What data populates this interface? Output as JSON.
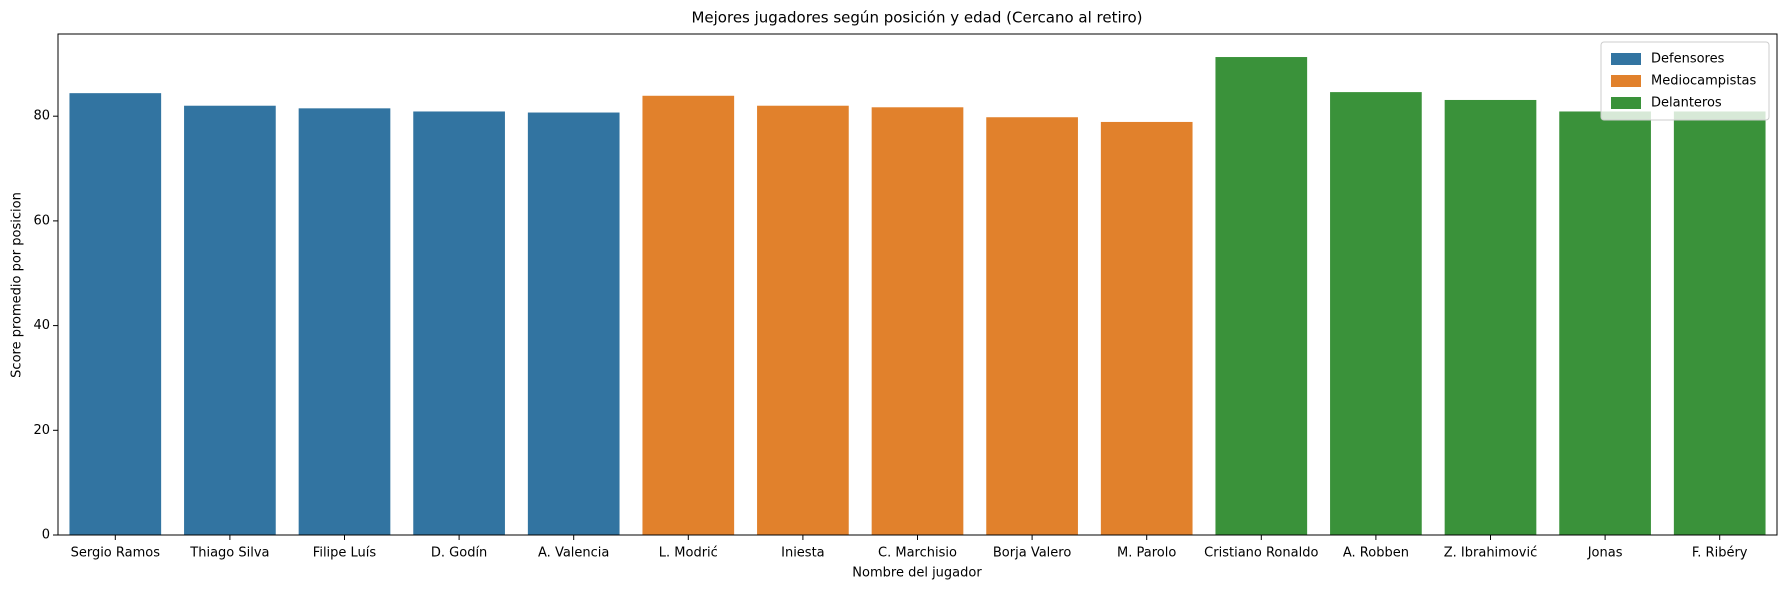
{
  "chart_data": {
    "type": "bar",
    "title": "Mejores jugadores según posición y edad (Cercano al retiro)",
    "x_label": "Nombre del jugador",
    "y_label": "Score promedio por posicion",
    "categories": [
      "Sergio Ramos",
      "Thiago Silva",
      "Filipe Luís",
      "D. Godín",
      "A. Valencia",
      "L. Modrić",
      "Iniesta",
      "C. Marchisio",
      "Borja Valero",
      "M. Parolo",
      "Cristiano Ronaldo",
      "A. Robben",
      "Z. Ibrahimović",
      "Jonas",
      "F. Ribéry"
    ],
    "series": [
      {
        "name": "Defensores",
        "color": "#3274a1",
        "values": [
          84.4,
          82.0,
          81.5,
          80.9,
          80.7,
          null,
          null,
          null,
          null,
          null,
          null,
          null,
          null,
          null,
          null
        ]
      },
      {
        "name": "Mediocampistas",
        "color": "#e1812c",
        "values": [
          null,
          null,
          null,
          null,
          null,
          83.9,
          82.0,
          81.7,
          79.8,
          78.9,
          null,
          null,
          null,
          null,
          null
        ]
      },
      {
        "name": "Delanteros",
        "color": "#3a923a",
        "values": [
          null,
          null,
          null,
          null,
          null,
          null,
          null,
          null,
          null,
          null,
          91.3,
          84.6,
          83.1,
          80.9,
          80.9
        ]
      }
    ],
    "ylim": [
      0,
      95.7
    ],
    "yticks": [
      0,
      20,
      40,
      60,
      80
    ],
    "legend": "upper right"
  }
}
